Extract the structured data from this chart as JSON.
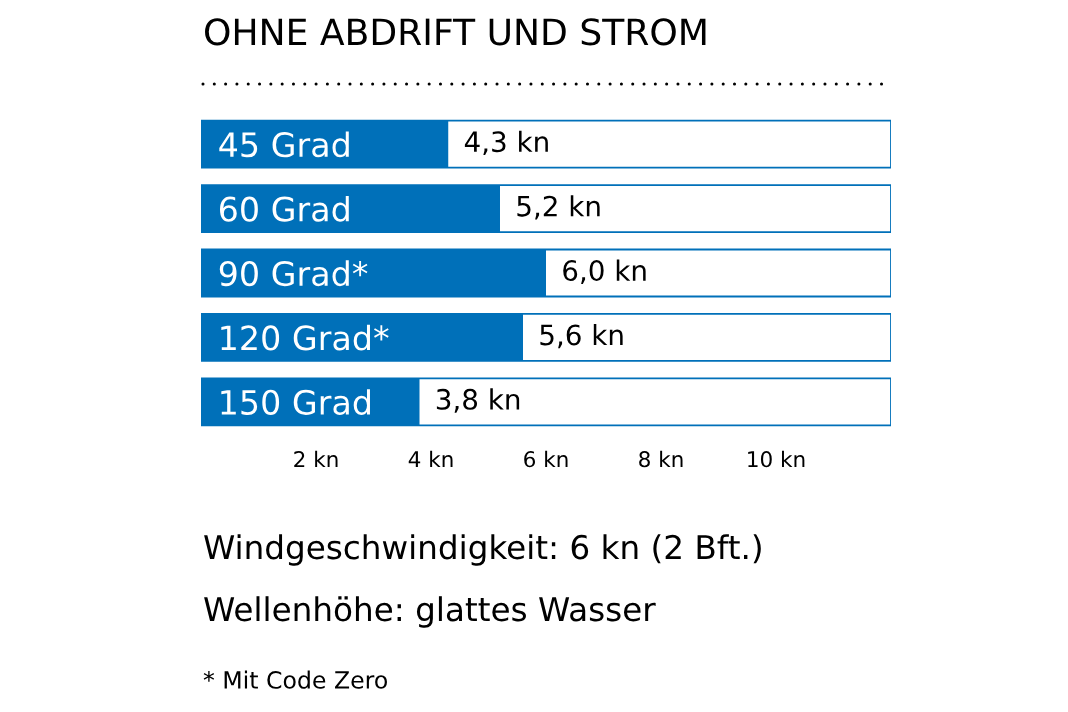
{
  "chart_data": {
    "type": "bar",
    "orientation": "horizontal",
    "title": "OHNE ABDRIFT UND STROM",
    "categories": [
      "45 Grad",
      "60 Grad",
      "90 Grad*",
      "120 Grad*",
      "150 Grad"
    ],
    "values": [
      4.3,
      5.2,
      6.0,
      5.6,
      3.8
    ],
    "value_labels": [
      "4,3 kn",
      "5,2 kn",
      "6,0 kn",
      "5,6 kn",
      "3,8 kn"
    ],
    "color": "#0070b9",
    "xlim": [
      0,
      12
    ],
    "xticks": [
      {
        "value": 2,
        "label": "2 kn"
      },
      {
        "value": 4,
        "label": "4 kn"
      },
      {
        "value": 6,
        "label": "6 kn"
      },
      {
        "value": 8,
        "label": "8 kn"
      },
      {
        "value": 10,
        "label": "10 kn"
      }
    ],
    "annotations": [
      "Windgeschwindigkeit: 6 kn (2 Bft.)",
      "Wellenhöhe: glattes Wasser",
      "* Mit Code Zero"
    ]
  }
}
